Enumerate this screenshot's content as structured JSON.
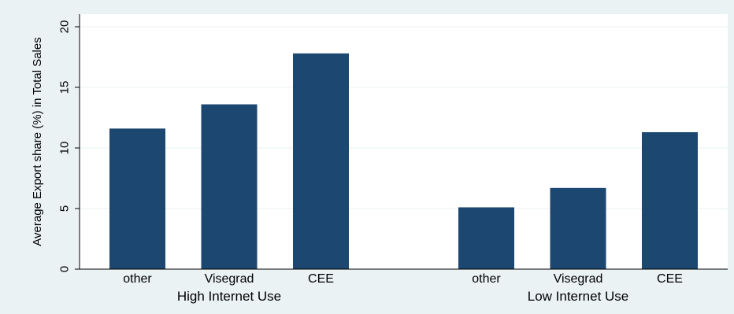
{
  "chart_data": {
    "type": "bar",
    "ylabel": "Average Export share (%) in Total Sales",
    "ylim": [
      0,
      20
    ],
    "yticks": [
      0,
      5,
      10,
      15,
      20
    ],
    "grid": true,
    "bar_color": "#1c4770",
    "background": "#eaf2f3",
    "plot_background": "#ffffff",
    "grid_color": "#eaf2f3",
    "groups": [
      {
        "label": "High Internet Use",
        "categories": [
          "other",
          "Visegrad",
          "CEE"
        ],
        "values": [
          11.6,
          13.6,
          17.8
        ]
      },
      {
        "label": "Low Internet Use",
        "categories": [
          "other",
          "Visegrad",
          "CEE"
        ],
        "values": [
          5.1,
          6.7,
          11.3
        ]
      }
    ]
  }
}
